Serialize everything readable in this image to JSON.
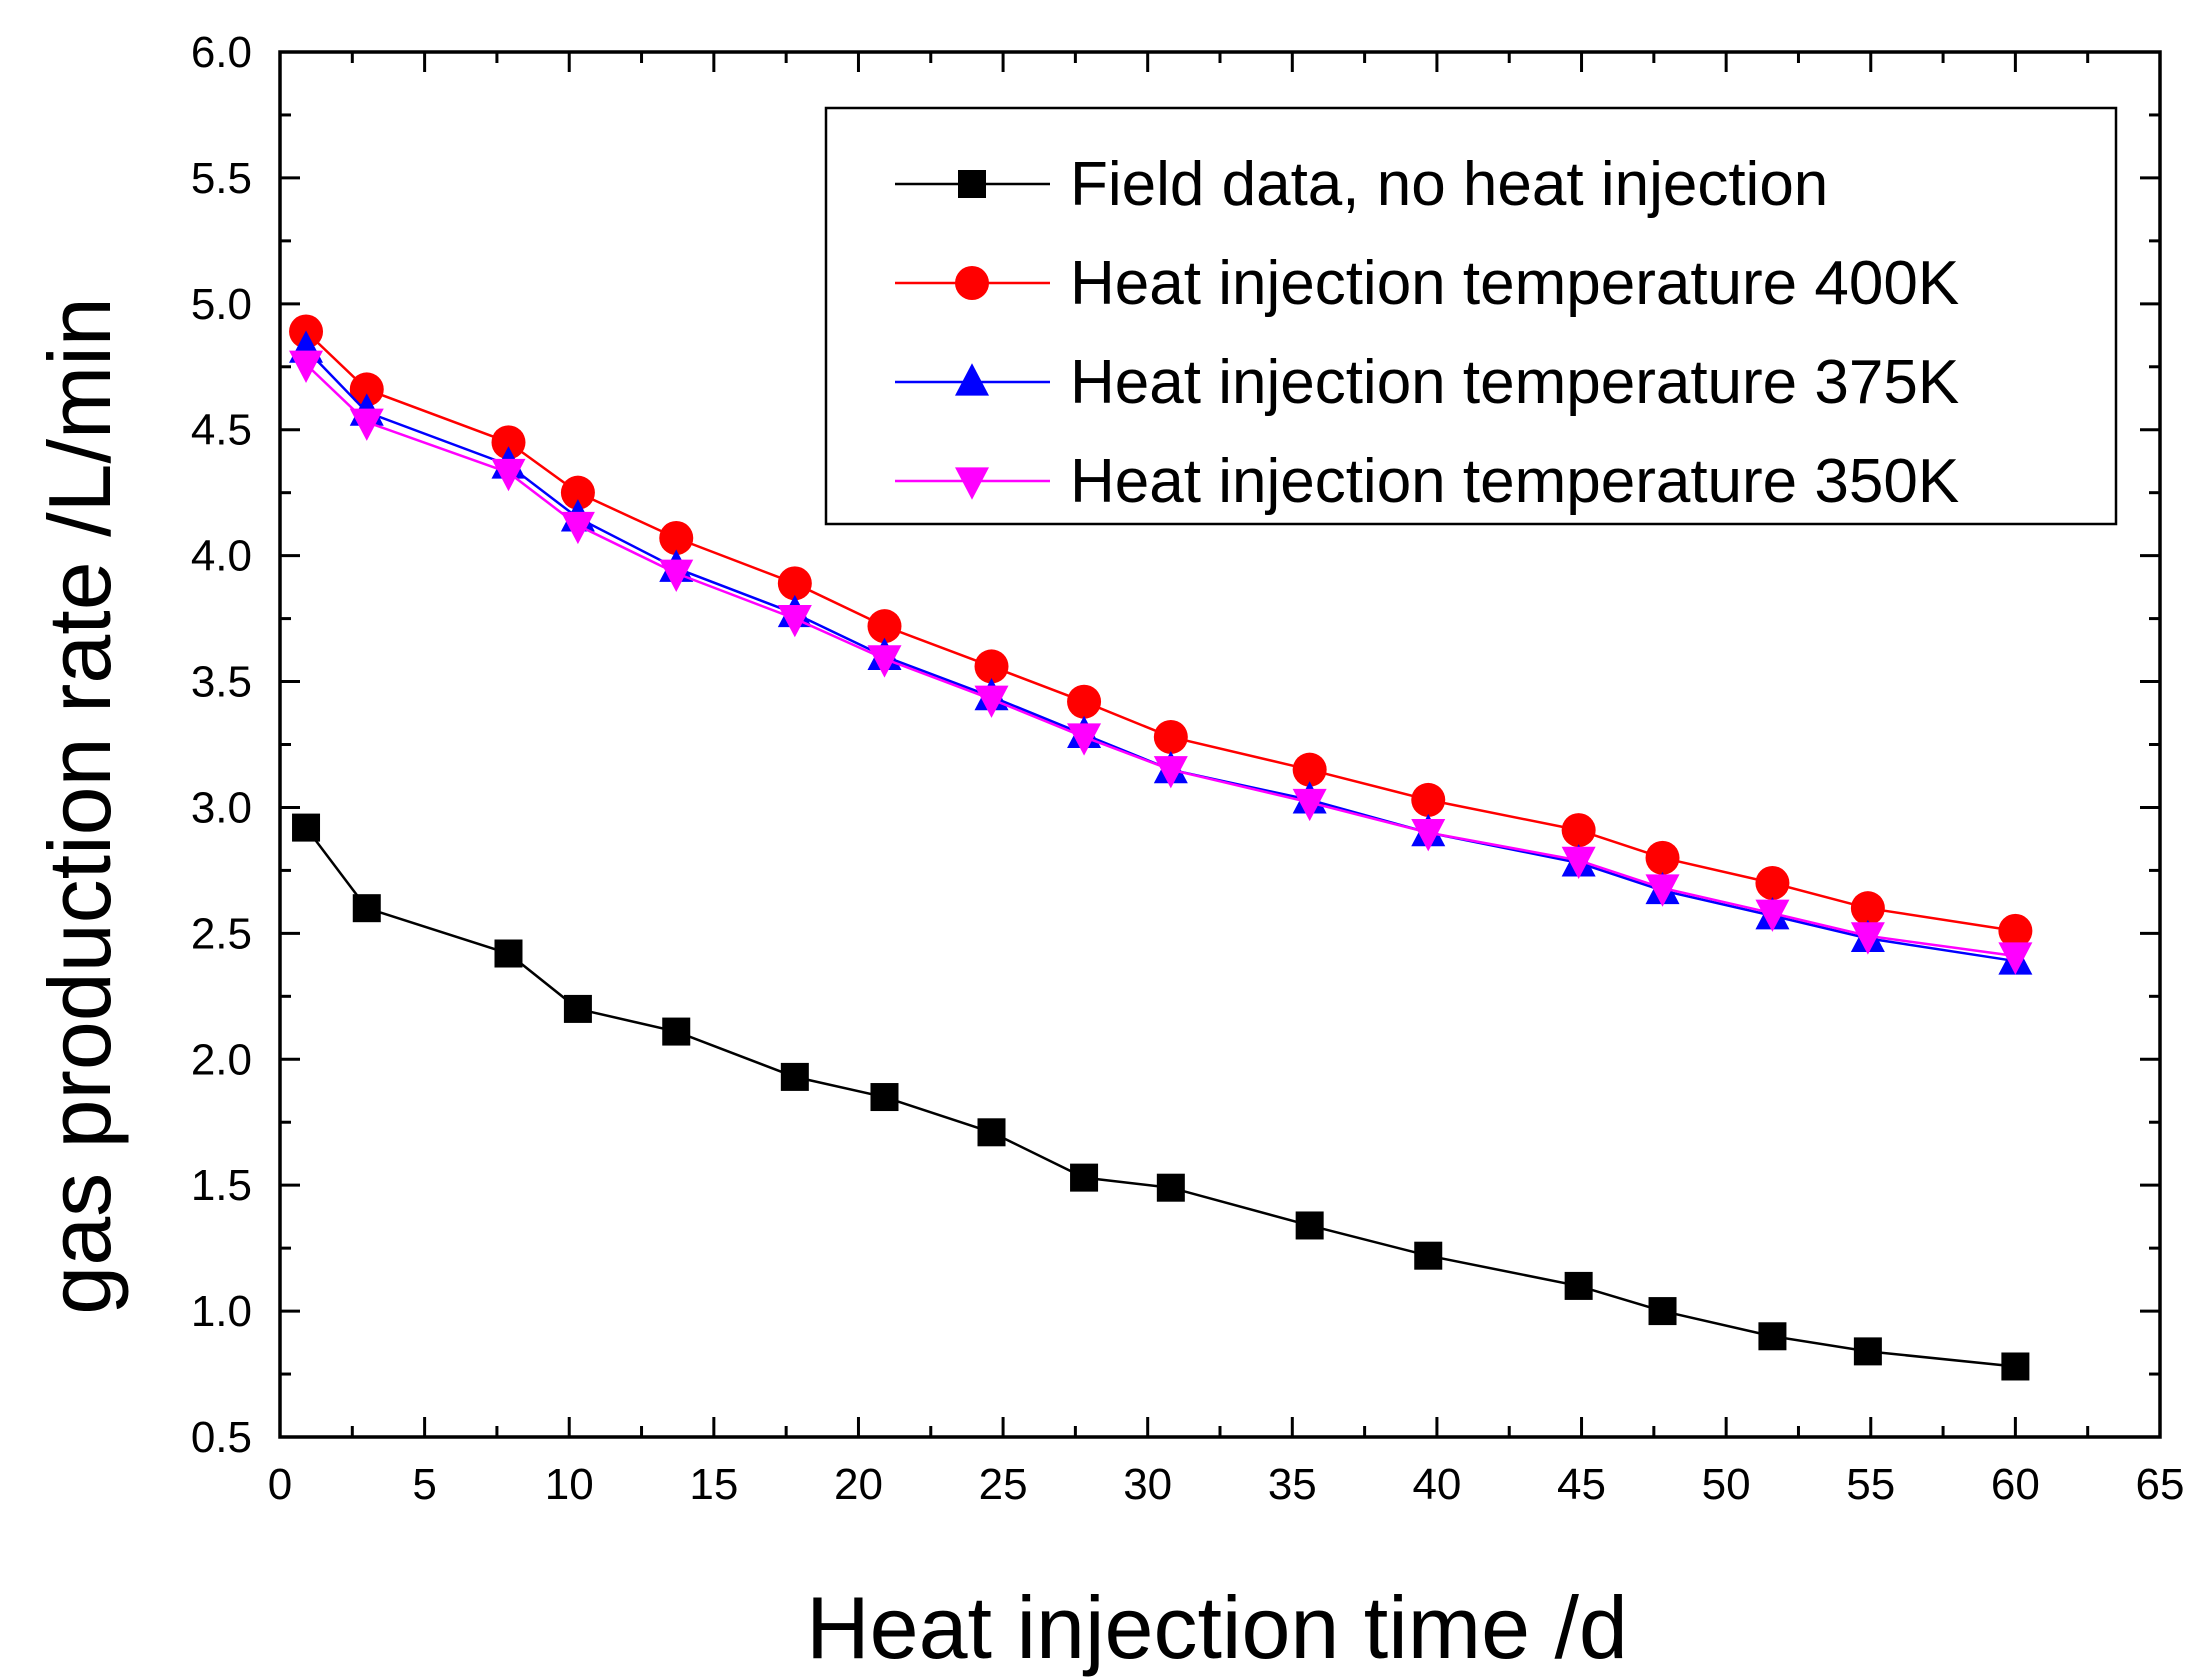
{
  "chart_data": {
    "type": "line",
    "xlabel": "Heat injection time /d",
    "ylabel": "gas production rate /L/min",
    "xlim": [
      0,
      65
    ],
    "ylim": [
      0.5,
      6.0
    ],
    "x_ticks": [
      0,
      5,
      10,
      15,
      20,
      25,
      30,
      35,
      40,
      45,
      50,
      55,
      60,
      65
    ],
    "y_ticks": [
      0.5,
      1.0,
      1.5,
      2.0,
      2.5,
      3.0,
      3.5,
      4.0,
      4.5,
      5.0,
      5.5,
      6.0
    ],
    "x_tick_labels": [
      "0",
      "5",
      "10",
      "15",
      "20",
      "25",
      "30",
      "35",
      "40",
      "45",
      "50",
      "55",
      "60",
      "65"
    ],
    "y_tick_labels": [
      "0.5",
      "1.0",
      "1.5",
      "2.0",
      "2.5",
      "3.0",
      "3.5",
      "4.0",
      "4.5",
      "5.0",
      "5.5",
      "6.0"
    ],
    "legend_position": "top-right",
    "series": [
      {
        "name": "Field data, no heat injection",
        "color": "#000000",
        "marker": "square",
        "x": [
          0.9,
          3.0,
          7.9,
          10.3,
          13.7,
          17.8,
          20.9,
          24.6,
          27.8,
          30.8,
          35.6,
          39.7,
          44.9,
          47.8,
          51.6,
          54.9,
          60.0
        ],
        "values": [
          2.92,
          2.6,
          2.42,
          2.2,
          2.11,
          1.93,
          1.85,
          1.71,
          1.53,
          1.49,
          1.34,
          1.22,
          1.1,
          1.0,
          0.9,
          0.84,
          0.78
        ]
      },
      {
        "name": "Heat injection temperature 400K",
        "color": "#ff0000",
        "marker": "circle",
        "x": [
          0.9,
          3.0,
          7.9,
          10.3,
          13.7,
          17.8,
          20.9,
          24.6,
          27.8,
          30.8,
          35.6,
          39.7,
          44.9,
          47.8,
          51.6,
          54.9,
          60.0
        ],
        "values": [
          4.89,
          4.66,
          4.45,
          4.25,
          4.07,
          3.89,
          3.72,
          3.56,
          3.42,
          3.28,
          3.15,
          3.03,
          2.91,
          2.8,
          2.7,
          2.6,
          2.51
        ]
      },
      {
        "name": "Heat injection temperature 375K",
        "color": "#0000ff",
        "marker": "triangle-up",
        "x": [
          0.9,
          3.0,
          7.9,
          10.3,
          13.7,
          17.8,
          20.9,
          24.6,
          27.8,
          30.8,
          35.6,
          39.7,
          44.9,
          47.8,
          51.6,
          54.9,
          60.0
        ],
        "values": [
          4.82,
          4.57,
          4.36,
          4.15,
          3.95,
          3.77,
          3.6,
          3.44,
          3.29,
          3.15,
          3.03,
          2.9,
          2.78,
          2.67,
          2.57,
          2.48,
          2.39
        ]
      },
      {
        "name": "Heat injection temperature 350K",
        "color": "#ff00ff",
        "marker": "triangle-down",
        "x": [
          0.9,
          3.0,
          7.9,
          10.3,
          13.7,
          17.8,
          20.9,
          24.6,
          27.8,
          30.8,
          35.6,
          39.7,
          44.9,
          47.8,
          51.6,
          54.9,
          60.0
        ],
        "values": [
          4.76,
          4.53,
          4.33,
          4.12,
          3.93,
          3.75,
          3.59,
          3.43,
          3.28,
          3.15,
          3.02,
          2.9,
          2.79,
          2.68,
          2.58,
          2.49,
          2.41
        ]
      }
    ]
  }
}
